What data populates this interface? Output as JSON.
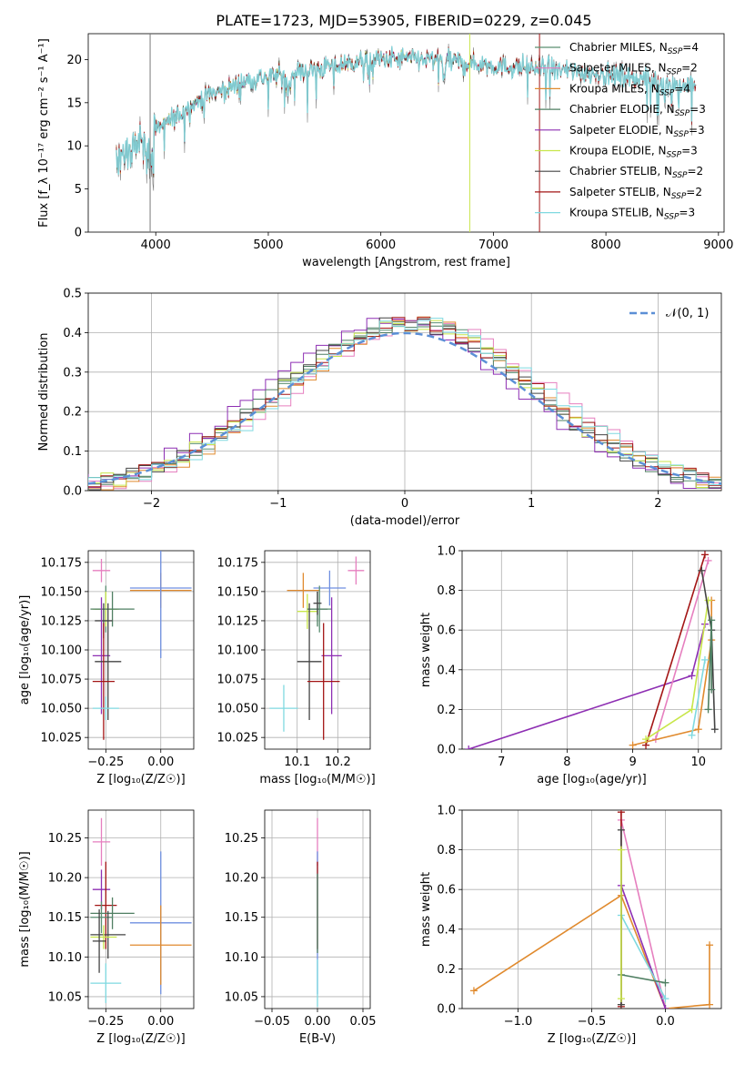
{
  "page_title": "PLATE=1723, MJD=53905, FIBERID=0229, z=0.045",
  "colors": {
    "Chabrier MILES": "#5a8f72",
    "Salpeter MILES": "#e67fbf",
    "Kroupa MILES": "#e08a2e",
    "Chabrier ELODIE": "#4f7f62",
    "Salpeter ELODIE": "#8e2fb3",
    "Kroupa ELODIE": "#c8e64a",
    "Chabrier STELIB": "#444444",
    "Salpeter STELIB": "#a31515",
    "Kroupa STELIB": "#7fd9e0",
    "normal": "#5b8fd6",
    "blue": "#6f8fe0",
    "data": "#7a7a7a"
  },
  "chart_data": [
    {
      "id": "spectrum",
      "type": "line",
      "title": "PLATE=1723, MJD=53905, FIBERID=0229, z=0.045",
      "xlabel": "wavelength [Angstrom, rest frame]",
      "ylabel": "Flux [f_λ 10⁻¹⁷ erg cm⁻² s⁻¹ A⁻¹]",
      "xlim": [
        3400,
        9050
      ],
      "ylim": [
        0,
        23
      ],
      "xticks": [
        "4000",
        "5000",
        "6000",
        "7000",
        "8000",
        "9000"
      ],
      "yticks": [
        "0",
        "5",
        "10",
        "15",
        "20"
      ],
      "legend_position": "top-right",
      "legend": [
        {
          "name": "Chabrier MILES",
          "sub": "N",
          "idx": "SSP",
          "val": "=4"
        },
        {
          "name": "Salpeter MILES",
          "sub": "N",
          "idx": "SSP",
          "val": "=2"
        },
        {
          "name": "Kroupa MILES",
          "sub": "N",
          "idx": "SSP",
          "val": "=4"
        },
        {
          "name": "Chabrier ELODIE",
          "sub": "N",
          "idx": "SSP",
          "val": "=3"
        },
        {
          "name": "Salpeter ELODIE",
          "sub": "N",
          "idx": "SSP",
          "val": "=3"
        },
        {
          "name": "Kroupa ELODIE",
          "sub": "N",
          "idx": "SSP",
          "val": "=3"
        },
        {
          "name": "Chabrier STELIB",
          "sub": "N",
          "idx": "SSP",
          "val": "=2"
        },
        {
          "name": "Salpeter STELIB",
          "sub": "N",
          "idx": "SSP",
          "val": "=2"
        },
        {
          "name": "Kroupa STELIB",
          "sub": "N",
          "idx": "SSP",
          "val": "=3"
        }
      ],
      "continuum_x": [
        3650,
        3800,
        3950,
        4000,
        4200,
        4400,
        4600,
        4800,
        5000,
        5200,
        5400,
        5600,
        5800,
        6000,
        6300,
        6600,
        7000,
        7400,
        7800,
        8200,
        8600,
        8800
      ],
      "continuum_y": [
        9,
        10,
        11,
        12,
        13.5,
        15.5,
        16.5,
        17.5,
        18,
        18.5,
        18.8,
        19.3,
        19.8,
        20,
        20.1,
        19.8,
        19.3,
        19,
        18.5,
        18,
        17.2,
        17
      ],
      "data_range": [
        3650,
        8800
      ],
      "vertical_lines": [
        {
          "x": 3950,
          "series": "data"
        },
        {
          "x": 6790,
          "series": "Kroupa ELODIE"
        },
        {
          "x": 7410,
          "series": "Salpeter STELIB"
        }
      ]
    },
    {
      "id": "residuals",
      "type": "step",
      "xlabel": "(data-model)/error",
      "ylabel": "Normed distribution",
      "xlim": [
        -2.5,
        2.5
      ],
      "ylim": [
        0,
        0.5
      ],
      "xticks": [
        -2,
        -1,
        0,
        1,
        2
      ],
      "yticks": [
        0.0,
        0.1,
        0.2,
        0.3,
        0.4,
        0.5
      ],
      "legend": "𝒩(0, 1)",
      "legend_position": "top-right",
      "bin_width": 0.1
    },
    {
      "id": "age_vs_Z",
      "type": "errorbar",
      "xlabel": "Z [log₁₀(Z/Z☉)]",
      "ylabel": "age  [log₁₀(age/yr)]",
      "xlim": [
        -0.33,
        0.15
      ],
      "ylim": [
        10.015,
        10.185
      ],
      "xticks": [
        "-0.25",
        "0.00"
      ],
      "yticks": [
        "10.025",
        "10.050",
        "10.075",
        "10.100",
        "10.125",
        "10.150",
        "10.175"
      ],
      "points": [
        {
          "series": "Salpeter MILES",
          "x": -0.27,
          "xerr": 0.04,
          "y": 10.168,
          "yerr": 0.01
        },
        {
          "series": "Kroupa MILES",
          "x": -0.0,
          "xerr": 0.14,
          "y": 10.151,
          "yerr": 0.015
        },
        {
          "series": "blue",
          "x": -0.0,
          "xerr": 0.14,
          "y": 10.153,
          "yerr": 0.06
        },
        {
          "series": "Chabrier MILES",
          "x": -0.25,
          "xerr": 0.05,
          "y": 10.135,
          "yerr": 0.02
        },
        {
          "series": "Kroupa ELODIE",
          "x": -0.25,
          "xerr": 0.06,
          "y": 10.135,
          "yerr": 0.015
        },
        {
          "series": "Chabrier ELODIE",
          "x": -0.22,
          "xerr": 0.1,
          "y": 10.135,
          "yerr": 0.015
        },
        {
          "series": "Chabrier STELIB",
          "x": -0.26,
          "xerr": 0.04,
          "y": 10.125,
          "yerr": 0.015
        },
        {
          "series": "Salpeter ELODIE",
          "x": -0.27,
          "xerr": 0.04,
          "y": 10.095,
          "yerr": 0.05
        },
        {
          "series": "Chabrier STELIB",
          "x": -0.24,
          "xerr": 0.06,
          "y": 10.09,
          "yerr": 0.05
        },
        {
          "series": "Salpeter STELIB",
          "x": -0.26,
          "xerr": 0.05,
          "y": 10.073,
          "yerr": 0.05
        },
        {
          "series": "Kroupa STELIB",
          "x": -0.25,
          "xerr": 0.06,
          "y": 10.05,
          "yerr": 0.01
        }
      ]
    },
    {
      "id": "age_vs_mass",
      "type": "errorbar",
      "xlabel": "mass [log₁₀(M/M☉)]",
      "ylabel": "",
      "xlim": [
        10.02,
        10.28
      ],
      "ylim": [
        10.015,
        10.185
      ],
      "xticks": [
        "10.1",
        "10.2"
      ],
      "yticks": [
        "10.025",
        "10.050",
        "10.075",
        "10.100",
        "10.125",
        "10.150",
        "10.175"
      ],
      "points": [
        {
          "series": "Salpeter MILES",
          "x": 10.245,
          "xerr": 0.02,
          "y": 10.168,
          "yerr": 0.012
        },
        {
          "series": "blue",
          "x": 10.18,
          "xerr": 0.04,
          "y": 10.153,
          "yerr": 0.015
        },
        {
          "series": "Kroupa MILES",
          "x": 10.115,
          "xerr": 0.04,
          "y": 10.151,
          "yerr": 0.015
        },
        {
          "series": "Chabrier MILES",
          "x": 10.155,
          "xerr": 0.03,
          "y": 10.135,
          "yerr": 0.02
        },
        {
          "series": "Kroupa ELODIE",
          "x": 10.125,
          "xerr": 0.025,
          "y": 10.133,
          "yerr": 0.015
        },
        {
          "series": "Chabrier ELODIE",
          "x": 10.15,
          "xerr": 0.025,
          "y": 10.135,
          "yerr": 0.015
        },
        {
          "series": "Chabrier STELIB",
          "x": 10.13,
          "xerr": 0.03,
          "y": 10.09,
          "yerr": 0.05
        },
        {
          "series": "Salpeter ELODIE",
          "x": 10.185,
          "xerr": 0.025,
          "y": 10.095,
          "yerr": 0.05
        },
        {
          "series": "Salpeter STELIB",
          "x": 10.165,
          "xerr": 0.04,
          "y": 10.073,
          "yerr": 0.05
        },
        {
          "series": "Kroupa STELIB",
          "x": 10.067,
          "xerr": 0.035,
          "y": 10.05,
          "yerr": 0.02
        },
        {
          "series": "Chabrier STELIB",
          "x": 10.15,
          "xerr": 0.01,
          "y": 10.14,
          "yerr": 0.01
        }
      ]
    },
    {
      "id": "weight_vs_age",
      "type": "line",
      "xlabel": "age  [log₁₀(age/yr)]",
      "ylabel": "mass weight",
      "xlim": [
        6.4,
        10.35
      ],
      "ylim": [
        0,
        1
      ],
      "xticks": [
        "7",
        "8",
        "9",
        "10"
      ],
      "yticks": [
        "0.0",
        "0.2",
        "0.4",
        "0.6",
        "0.8",
        "1.0"
      ],
      "series": [
        {
          "series": "Salpeter ELODIE",
          "x": [
            6.5,
            9.9,
            10.1
          ],
          "y": [
            0.0,
            0.37,
            0.63
          ]
        },
        {
          "series": "Salpeter STELIB",
          "x": [
            9.2,
            10.1
          ],
          "y": [
            0.02,
            0.98
          ]
        },
        {
          "series": "Salpeter MILES",
          "x": [
            9.35,
            10.15
          ],
          "y": [
            0.05,
            0.95
          ]
        },
        {
          "series": "Kroupa MILES",
          "x": [
            9.0,
            10.0,
            10.2,
            10.2
          ],
          "y": [
            0.02,
            0.1,
            0.55,
            0.75
          ]
        },
        {
          "series": "Kroupa ELODIE",
          "x": [
            9.2,
            9.9,
            10.15
          ],
          "y": [
            0.05,
            0.2,
            0.75
          ]
        },
        {
          "series": "Kroupa STELIB",
          "x": [
            9.9,
            10.1
          ],
          "y": [
            0.07,
            0.45
          ]
        },
        {
          "series": "Chabrier STELIB",
          "x": [
            10.05,
            10.2,
            10.25
          ],
          "y": [
            0.9,
            0.6,
            0.1
          ]
        },
        {
          "series": "Chabrier ELODIE",
          "x": [
            10.15,
            10.2,
            10.2
          ],
          "y": [
            0.2,
            0.65,
            0.3
          ]
        }
      ]
    },
    {
      "id": "mass_vs_Z",
      "type": "errorbar",
      "xlabel": "Z [log₁₀(Z/Z☉)]",
      "ylabel": "mass [log₁₀(M/M☉)]",
      "xlim": [
        -0.33,
        0.15
      ],
      "ylim": [
        10.035,
        10.285
      ],
      "xticks": [
        "-0.25",
        "0.00"
      ],
      "yticks": [
        "10.05",
        "10.10",
        "10.15",
        "10.20",
        "10.25"
      ],
      "points": [
        {
          "series": "Salpeter MILES",
          "x": -0.27,
          "xerr": 0.04,
          "y": 10.245,
          "yerr": 0.03
        },
        {
          "series": "blue",
          "x": -0.0,
          "xerr": 0.14,
          "y": 10.143,
          "yerr": 0.09
        },
        {
          "series": "Kroupa MILES",
          "x": -0.0,
          "xerr": 0.14,
          "y": 10.115,
          "yerr": 0.05
        },
        {
          "series": "Salpeter ELODIE",
          "x": -0.27,
          "xerr": 0.04,
          "y": 10.185,
          "yerr": 0.025
        },
        {
          "series": "Salpeter STELIB",
          "x": -0.25,
          "xerr": 0.05,
          "y": 10.165,
          "yerr": 0.055
        },
        {
          "series": "Chabrier ELODIE",
          "x": -0.22,
          "xerr": 0.1,
          "y": 10.155,
          "yerr": 0.02
        },
        {
          "series": "Chabrier MILES",
          "x": -0.27,
          "xerr": 0.05,
          "y": 10.15,
          "yerr": 0.02
        },
        {
          "series": "Chabrier STELIB",
          "x": -0.24,
          "xerr": 0.08,
          "y": 10.128,
          "yerr": 0.03
        },
        {
          "series": "Kroupa ELODIE",
          "x": -0.26,
          "xerr": 0.06,
          "y": 10.125,
          "yerr": 0.015
        },
        {
          "series": "Chabrier STELIB",
          "x": -0.28,
          "xerr": 0.03,
          "y": 10.12,
          "yerr": 0.04
        },
        {
          "series": "Kroupa STELIB",
          "x": -0.25,
          "xerr": 0.07,
          "y": 10.067,
          "yerr": 0.025
        }
      ]
    },
    {
      "id": "ebv",
      "type": "errorbar",
      "xlabel": "E(B-V)",
      "ylabel": "",
      "xlim": [
        -0.058,
        0.058
      ],
      "ylim": [
        10.035,
        10.285
      ],
      "xticks": [
        "−0.05",
        "0.00",
        "0.05"
      ],
      "yticks": [
        "10.05",
        "10.10",
        "10.15",
        "10.20",
        "10.25"
      ],
      "points": [
        {
          "series": "Salpeter MILES",
          "x": 0,
          "xerr": 0,
          "y": 10.245,
          "yerr": 0.03
        },
        {
          "series": "blue",
          "x": 0,
          "xerr": 0,
          "y": 10.143,
          "yerr": 0.09
        },
        {
          "series": "Kroupa STELIB",
          "x": 0,
          "xerr": 0,
          "y": 10.067,
          "yerr": 0.03
        },
        {
          "series": "Salpeter STELIB",
          "x": 0,
          "xerr": 0,
          "y": 10.165,
          "yerr": 0.055
        },
        {
          "series": "Chabrier ELODIE",
          "x": 0,
          "xerr": 0,
          "y": 10.155,
          "yerr": 0.05
        }
      ]
    },
    {
      "id": "weight_vs_Z",
      "type": "line",
      "xlabel": "Z [log₁₀(Z/Z☉)]",
      "ylabel": "mass weight",
      "xlim": [
        -1.38,
        0.38
      ],
      "ylim": [
        0,
        1
      ],
      "xticks": [
        "−1.0",
        "−0.5",
        "0.0"
      ],
      "yticks": [
        "0.0",
        "0.2",
        "0.4",
        "0.6",
        "0.8",
        "1.0"
      ],
      "series": [
        {
          "series": "Kroupa MILES",
          "x": [
            -1.3,
            -0.3,
            0.0,
            0.3,
            0.3
          ],
          "y": [
            0.09,
            0.57,
            0.0,
            0.02,
            0.32
          ]
        },
        {
          "series": "Salpeter MILES",
          "x": [
            -0.3,
            0.0
          ],
          "y": [
            0.95,
            0.0
          ]
        },
        {
          "series": "Salpeter ELODIE",
          "x": [
            -0.3,
            0.0
          ],
          "y": [
            0.62,
            0.0
          ]
        },
        {
          "series": "Kroupa STELIB",
          "x": [
            -0.3,
            0.0
          ],
          "y": [
            0.47,
            0.05
          ]
        },
        {
          "series": "Chabrier ELODIE",
          "x": [
            -0.3,
            0.0
          ],
          "y": [
            0.17,
            0.13
          ]
        },
        {
          "series": "Salpeter STELIB",
          "x": [
            -0.3,
            -0.3
          ],
          "y": [
            0.01,
            0.99
          ]
        },
        {
          "series": "Chabrier STELIB",
          "x": [
            -0.3,
            -0.3
          ],
          "y": [
            0.02,
            0.9
          ]
        },
        {
          "series": "Kroupa ELODIE",
          "x": [
            -0.3,
            -0.3
          ],
          "y": [
            0.05,
            0.8
          ]
        }
      ]
    }
  ]
}
